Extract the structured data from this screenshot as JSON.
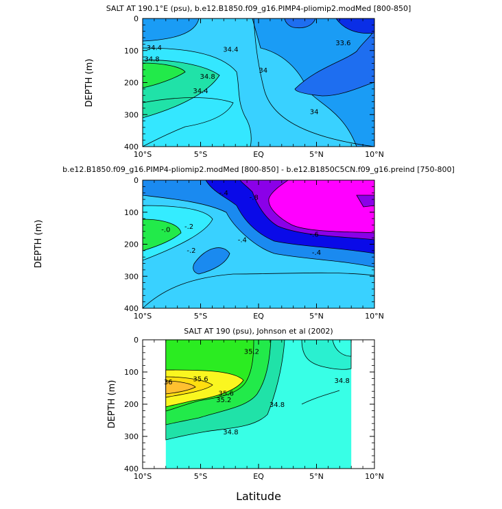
{
  "chart_data": [
    {
      "type": "contour",
      "title": "SALT AT 190.1°E (psu), b.e12.B1850.f09_g16.PIMP4-pliomip2.modMed [800-850]",
      "ylabel": "DEPTH (m)",
      "xlabel": "",
      "xlim": [
        -10,
        10
      ],
      "ylim": [
        400,
        0
      ],
      "x_ticks": [
        -10,
        -5,
        0,
        5,
        10
      ],
      "x_tick_labels": [
        "10°S",
        "5°S",
        "EQ",
        "5°N",
        "10°N"
      ],
      "y_ticks": [
        0,
        100,
        200,
        300,
        400
      ],
      "y_tick_labels": [
        "0",
        "100",
        "200",
        "300",
        "400"
      ],
      "contour_labels": [
        {
          "text": "34.4",
          "x": -9.0,
          "y": 90
        },
        {
          "text": "34.8",
          "x": -9.2,
          "y": 125
        },
        {
          "text": "34.4",
          "x": -2.4,
          "y": 95
        },
        {
          "text": "34.8",
          "x": -4.4,
          "y": 180
        },
        {
          "text": "34.4",
          "x": -5.0,
          "y": 225
        },
        {
          "text": "34",
          "x": 0.4,
          "y": 160
        },
        {
          "text": "33.6",
          "x": 7.3,
          "y": 75
        },
        {
          "text": "34",
          "x": 4.8,
          "y": 290
        }
      ],
      "colors": [
        "#0a2ee6",
        "#1e6ef0",
        "#1a9cf5",
        "#39d1ff",
        "#34e7ff",
        "#20e2a8",
        "#22ea4a"
      ]
    },
    {
      "type": "contour",
      "title": "b.e12.B1850.f09_g16.PIMP4-pliomip2.modMed [800-850] - b.e12.B1850C5CN.f09_g16.preind [750-800]",
      "ylabel": "DEPTH (m)",
      "xlabel": "",
      "xlim": [
        -10,
        10
      ],
      "ylim": [
        400,
        0
      ],
      "x_ticks": [
        -10,
        -5,
        0,
        5,
        10
      ],
      "x_tick_labels": [
        "10°S",
        "5°S",
        "EQ",
        "5°N",
        "10°N"
      ],
      "y_ticks": [
        0,
        100,
        200,
        300,
        400
      ],
      "y_tick_labels": [
        "0",
        "100",
        "200",
        "300",
        "400"
      ],
      "contour_labels": [
        {
          "text": "-.4",
          "x": -3.0,
          "y": 38
        },
        {
          "text": "-.8",
          "x": -0.4,
          "y": 52
        },
        {
          "text": "-.0",
          "x": -8.0,
          "y": 153
        },
        {
          "text": "-.2",
          "x": -6.0,
          "y": 143
        },
        {
          "text": "-.4",
          "x": -1.4,
          "y": 185
        },
        {
          "text": "-.2",
          "x": -5.8,
          "y": 218
        },
        {
          "text": "-.6",
          "x": 4.8,
          "y": 168
        },
        {
          "text": "-.4",
          "x": 5.0,
          "y": 225
        }
      ],
      "colors": [
        "#ff00ff",
        "#8b00e8",
        "#0a0ae8",
        "#1a8af0",
        "#39d1ff",
        "#34ecff",
        "#22ea4a"
      ]
    },
    {
      "type": "contour",
      "title": "SALT AT 190 (psu), Johnson et al (2002)",
      "ylabel": "DEPTH (m)",
      "xlabel": "Latitude",
      "xlim": [
        -10,
        10
      ],
      "ylim": [
        400,
        0
      ],
      "data_extent_x": [
        -8,
        8
      ],
      "x_ticks": [
        -10,
        -5,
        0,
        5,
        10
      ],
      "x_tick_labels": [
        "10°S",
        "5°S",
        "EQ",
        "5°N",
        "10°N"
      ],
      "y_ticks": [
        0,
        100,
        200,
        300,
        400
      ],
      "y_tick_labels": [
        "0",
        "100",
        "200",
        "300",
        "400"
      ],
      "contour_labels": [
        {
          "text": "35.2",
          "x": -0.6,
          "y": 35
        },
        {
          "text": "35.6",
          "x": -5.0,
          "y": 120
        },
        {
          "text": "36",
          "x": -7.8,
          "y": 130
        },
        {
          "text": "35.6",
          "x": -2.8,
          "y": 165
        },
        {
          "text": "35.2",
          "x": -3.0,
          "y": 185
        },
        {
          "text": "34.8",
          "x": 1.6,
          "y": 200
        },
        {
          "text": "34.8",
          "x": 7.2,
          "y": 125
        },
        {
          "text": "34.8",
          "x": -2.4,
          "y": 285
        }
      ],
      "colors": [
        "#2bec21",
        "#22ea4a",
        "#20e2a8",
        "#2af0d0",
        "#38ffe6",
        "#faf620",
        "#ffde10",
        "#ffc030"
      ]
    }
  ]
}
